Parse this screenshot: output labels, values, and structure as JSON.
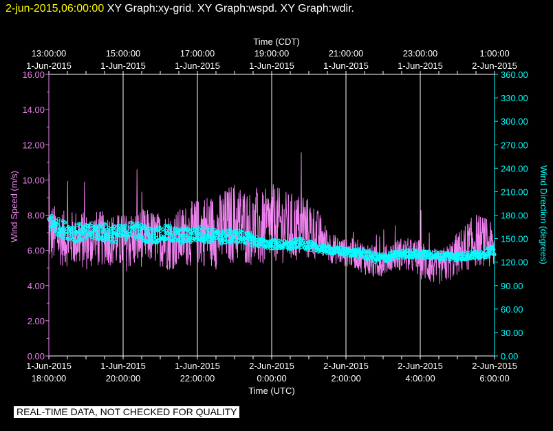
{
  "header": {
    "timestamp": "2-jun-2015,06:00:00",
    "title": "XY Graph:xy-grid.  XY Graph:wspd.  XY Graph:wdir."
  },
  "disclaimer": "REAL-TIME DATA, NOT CHECKED FOR QUALITY",
  "colors": {
    "speed": "#ee82ee",
    "direction": "#00ffff",
    "grid": "#ffffff",
    "background": "#000000",
    "header_time": "#ffff00"
  },
  "chart_data": {
    "type": "line",
    "top_axis_label": "Time (CDT)",
    "top_ticks": [
      {
        "time": "13:00:00",
        "date": "1-Jun-2015"
      },
      {
        "time": "15:00:00",
        "date": "1-Jun-2015"
      },
      {
        "time": "17:00:00",
        "date": "1-Jun-2015"
      },
      {
        "time": "19:00:00",
        "date": "1-Jun-2015"
      },
      {
        "time": "21:00:00",
        "date": "1-Jun-2015"
      },
      {
        "time": "23:00:00",
        "date": "1-Jun-2015"
      },
      {
        "time": "1:00:00",
        "date": "2-Jun-2015"
      }
    ],
    "xlabel": "Time (UTC)",
    "bottom_ticks": [
      {
        "date": "1-Jun-2015",
        "time": "18:00:00"
      },
      {
        "date": "1-Jun-2015",
        "time": "20:00:00"
      },
      {
        "date": "1-Jun-2015",
        "time": "22:00:00"
      },
      {
        "date": "2-Jun-2015",
        "time": "0:00:00"
      },
      {
        "date": "2-Jun-2015",
        "time": "2:00:00"
      },
      {
        "date": "2-Jun-2015",
        "time": "4:00:00"
      },
      {
        "date": "2-Jun-2015",
        "time": "6:00:00"
      }
    ],
    "xlim_hours_utc": [
      18,
      30
    ],
    "ylabel_left": "Wind Speed (m/s)",
    "ylim_left": [
      0,
      16
    ],
    "yticks_left": [
      "0.00",
      "2.00",
      "4.00",
      "6.00",
      "8.00",
      "10.00",
      "12.00",
      "14.00",
      "16.00"
    ],
    "ylabel_right": "Wind Direction (degrees)",
    "ylim_right": [
      0,
      360
    ],
    "yticks_right": [
      "0.00",
      "30.00",
      "60.00",
      "90.00",
      "120.00",
      "150.00",
      "180.00",
      "210.00",
      "240.00",
      "270.00",
      "300.00",
      "330.00",
      "360.00"
    ],
    "grid": "vertical",
    "series": [
      {
        "key": "speed",
        "style": "line",
        "axis": "left",
        "hour_utc": [
          18.0,
          18.25,
          18.5,
          18.75,
          19.0,
          19.25,
          19.5,
          19.75,
          20.0,
          20.25,
          20.5,
          20.75,
          21.0,
          21.25,
          21.5,
          21.75,
          22.0,
          22.25,
          22.5,
          22.75,
          23.0,
          23.25,
          23.5,
          23.75,
          24.0,
          24.25,
          24.5,
          24.75,
          25.0,
          25.25,
          25.5,
          25.75,
          26.0,
          26.25,
          26.5,
          26.75,
          27.0,
          27.25,
          27.5,
          27.75,
          28.0,
          28.25,
          28.5,
          28.75,
          29.0,
          29.25,
          29.5,
          29.75,
          30.0
        ],
        "mean": [
          7.0,
          6.8,
          6.6,
          6.7,
          6.5,
          6.6,
          6.7,
          6.6,
          6.4,
          6.6,
          6.7,
          6.8,
          6.6,
          6.5,
          6.7,
          6.9,
          7.0,
          7.2,
          7.0,
          7.3,
          7.6,
          7.4,
          7.2,
          7.1,
          7.6,
          7.4,
          7.2,
          7.3,
          7.2,
          6.9,
          6.3,
          6.0,
          5.9,
          5.8,
          5.6,
          5.3,
          5.4,
          5.7,
          5.8,
          5.7,
          5.5,
          5.2,
          5.0,
          5.3,
          5.8,
          6.2,
          6.6,
          6.5,
          6.0
        ],
        "spread": [
          1.3,
          1.2,
          1.1,
          1.2,
          1.2,
          1.2,
          1.1,
          1.1,
          1.2,
          1.2,
          1.2,
          1.1,
          1.1,
          1.2,
          1.2,
          1.3,
          1.4,
          1.5,
          1.5,
          1.6,
          1.7,
          1.6,
          1.5,
          1.6,
          1.6,
          1.5,
          1.5,
          1.4,
          1.3,
          1.0,
          0.7,
          0.6,
          0.6,
          0.6,
          0.7,
          0.7,
          0.6,
          0.6,
          0.7,
          0.7,
          0.8,
          0.8,
          0.7,
          0.8,
          0.9,
          1.0,
          1.1,
          1.0,
          1.0
        ]
      },
      {
        "key": "direction",
        "style": "markers",
        "axis": "right",
        "hour_utc": [
          18.0,
          18.25,
          18.5,
          18.75,
          19.0,
          19.25,
          19.5,
          19.75,
          20.0,
          20.25,
          20.5,
          20.75,
          21.0,
          21.25,
          21.5,
          21.75,
          22.0,
          22.25,
          22.5,
          22.75,
          23.0,
          23.25,
          23.5,
          23.75,
          24.0,
          24.25,
          24.5,
          24.75,
          25.0,
          25.25,
          25.5,
          25.75,
          26.0,
          26.25,
          26.5,
          26.75,
          27.0,
          27.25,
          27.5,
          27.75,
          28.0,
          28.25,
          28.5,
          28.75,
          29.0,
          29.25,
          29.5,
          29.75,
          30.0
        ],
        "mean": [
          172,
          165,
          160,
          158,
          157,
          160,
          158,
          156,
          157,
          162,
          158,
          154,
          155,
          157,
          153,
          154,
          156,
          155,
          153,
          152,
          153,
          152,
          148,
          144,
          143,
          142,
          141,
          145,
          141,
          138,
          136,
          134,
          133,
          132,
          130,
          126,
          125,
          128,
          130,
          131,
          130,
          129,
          128,
          128,
          127,
          128,
          129,
          132,
          134
        ],
        "spread": [
          12,
          11,
          11,
          12,
          11,
          11,
          12,
          11,
          10,
          11,
          11,
          10,
          10,
          11,
          10,
          10,
          10,
          10,
          9,
          9,
          9,
          8,
          7,
          6,
          6,
          6,
          6,
          6,
          6,
          5,
          5,
          5,
          5,
          5,
          6,
          6,
          6,
          5,
          5,
          5,
          5,
          5,
          5,
          5,
          5,
          5,
          5,
          6,
          6
        ]
      }
    ]
  }
}
